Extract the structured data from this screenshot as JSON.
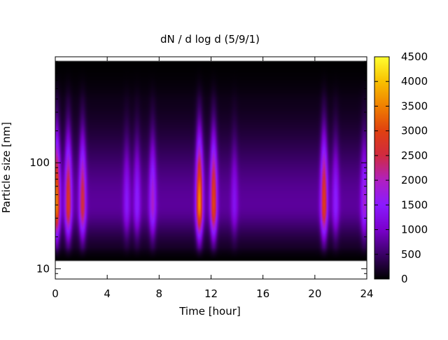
{
  "chart_data": {
    "type": "heatmap",
    "title": "dN / d log d (5/9/1)",
    "xlabel": "Time [hour]",
    "ylabel": "Particle size [nm]",
    "x_axis": {
      "range": [
        0,
        24
      ],
      "ticks": [
        0,
        4,
        8,
        12,
        16,
        20,
        24
      ],
      "tick_labels": [
        "0",
        "4",
        "8",
        "12",
        "16",
        "20",
        "24"
      ]
    },
    "y_axis": {
      "scale": "log",
      "range": [
        8,
        1000
      ],
      "ticks": [
        10,
        100
      ],
      "tick_labels": [
        "10",
        "100"
      ]
    },
    "colorbar": {
      "range": [
        0,
        4500
      ],
      "ticks": [
        0,
        500,
        1000,
        1500,
        2000,
        2500,
        3000,
        3500,
        4000,
        4500
      ],
      "tick_labels": [
        "0",
        "500",
        "1000",
        "1500",
        "2000",
        "2500",
        "3000",
        "3500",
        "4000",
        "4500"
      ],
      "colormap": [
        "#000000",
        "#3a0066",
        "#7a00cc",
        "#8a1aff",
        "#b020c0",
        "#d02a40",
        "#e04010",
        "#f08000",
        "#f8c000",
        "#ffff30"
      ]
    },
    "data_extent": {
      "size_min_nm": 12,
      "size_max_nm": 900
    },
    "background_level": 700,
    "peak_size_nm": 40,
    "events": [
      {
        "time": 0.1,
        "value": 3500
      },
      {
        "time": 1.0,
        "value": 2800
      },
      {
        "time": 2.1,
        "value": 2600
      },
      {
        "time": 5.5,
        "value": 1400
      },
      {
        "time": 6.3,
        "value": 1500
      },
      {
        "time": 7.5,
        "value": 1900
      },
      {
        "time": 11.1,
        "value": 3600
      },
      {
        "time": 12.2,
        "value": 3000
      },
      {
        "time": 13.8,
        "value": 1300
      },
      {
        "time": 20.7,
        "value": 2900
      },
      {
        "time": 21.6,
        "value": 1500
      },
      {
        "time": 23.8,
        "value": 1800
      }
    ]
  }
}
